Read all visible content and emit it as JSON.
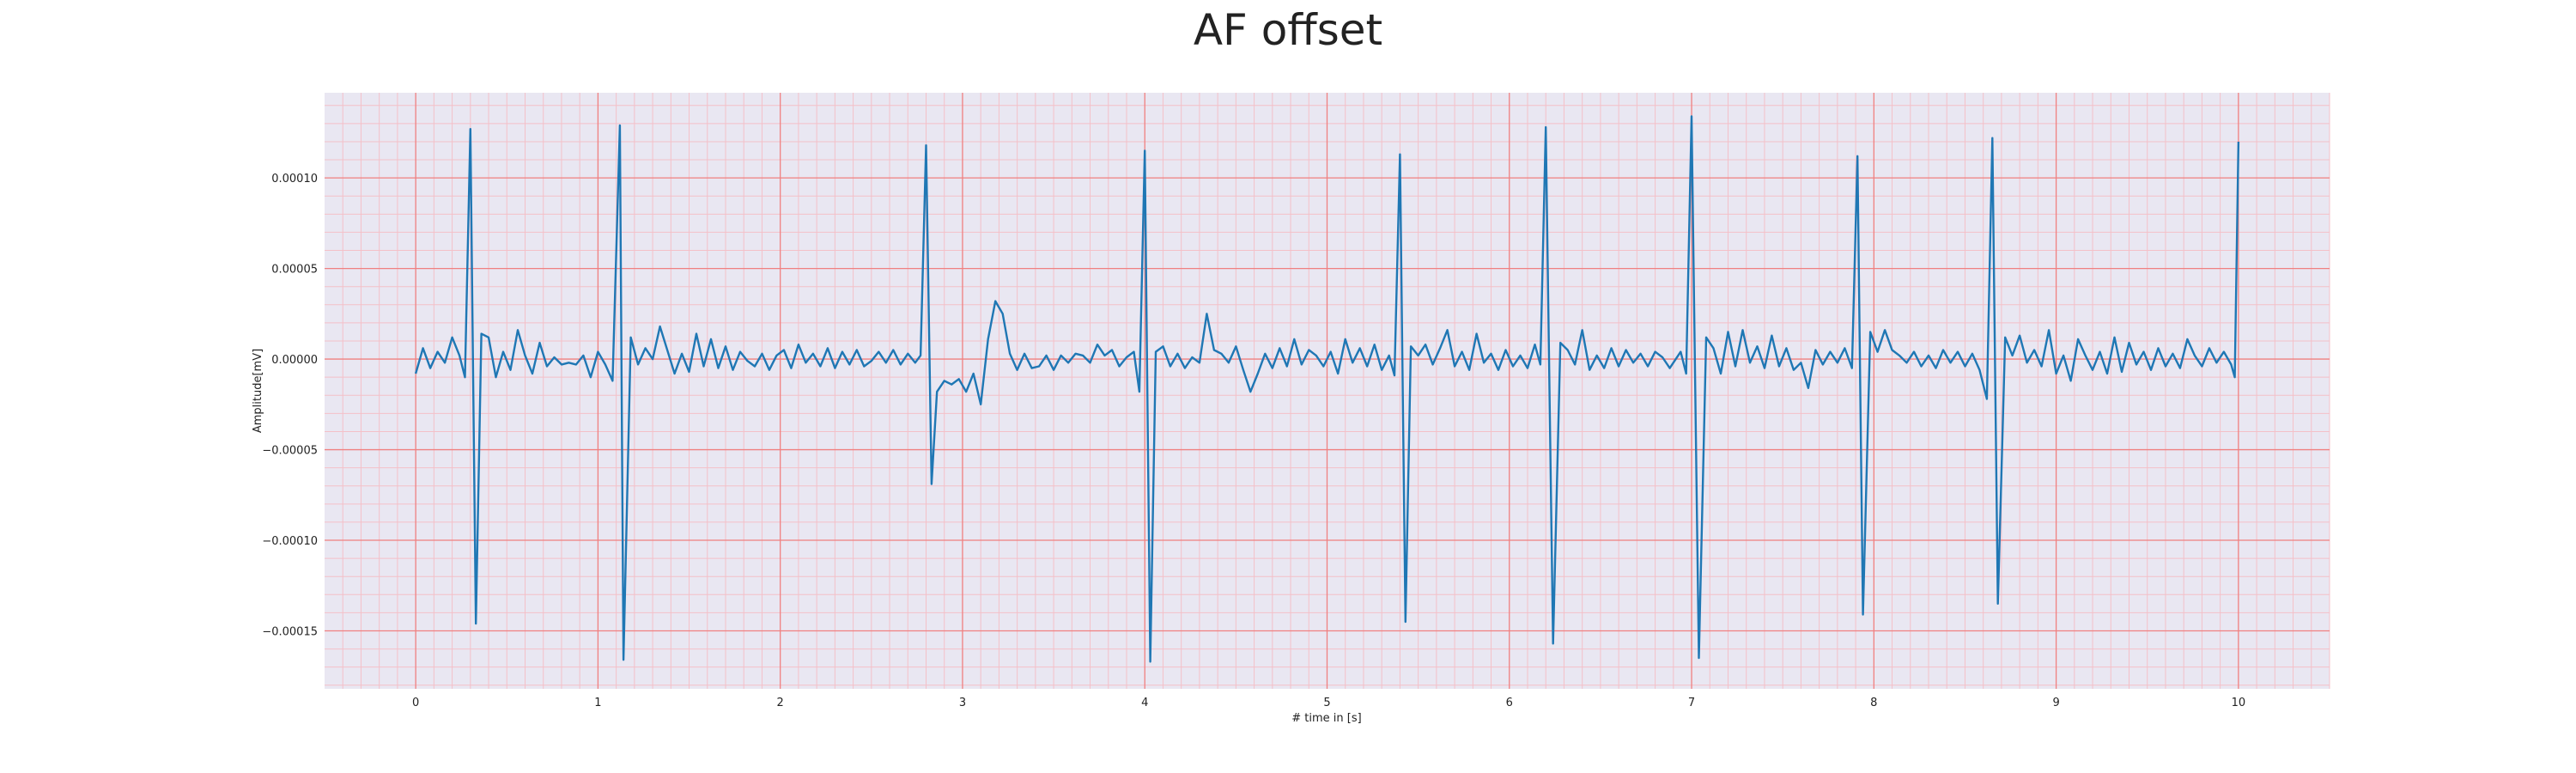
{
  "chart_data": {
    "type": "line",
    "title": "AF offset",
    "xlabel": "# time in [s]",
    "ylabel": "Amplitude[mV]",
    "xlim": [
      -0.5,
      10.5
    ],
    "ylim": [
      -0.000182,
      0.000147
    ],
    "x_ticks": [
      0,
      1,
      2,
      3,
      4,
      5,
      6,
      7,
      8,
      9,
      10
    ],
    "x_tick_labels": [
      "0",
      "1",
      "2",
      "3",
      "4",
      "5",
      "6",
      "7",
      "8",
      "9",
      "10"
    ],
    "y_ticks": [
      0.0001,
      5e-05,
      0.0,
      -5e-05,
      -0.0001,
      -0.00015
    ],
    "y_tick_labels": [
      "0.00010",
      "0.00005",
      "0.00000",
      "−0.00005",
      "−0.00010",
      "−0.00015"
    ],
    "grid": {
      "major": true,
      "minor": true
    },
    "colors": {
      "background": "#e9e7f2",
      "major_grid": "#f08080",
      "minor_grid": "#f4c0c8",
      "line": "#1f77b4"
    },
    "series": [
      {
        "values": {
          "x": [
            0.0,
            0.04,
            0.08,
            0.12,
            0.16,
            0.2,
            0.24,
            0.27,
            0.3,
            0.33,
            0.36,
            0.4,
            0.44,
            0.48,
            0.52,
            0.56,
            0.6,
            0.64,
            0.68,
            0.72,
            0.76,
            0.8,
            0.84,
            0.88,
            0.92,
            0.96,
            1.0,
            1.04,
            1.08,
            1.12,
            1.14,
            1.18,
            1.22,
            1.26,
            1.3,
            1.34,
            1.38,
            1.42,
            1.46,
            1.5,
            1.54,
            1.58,
            1.62,
            1.66,
            1.7,
            1.74,
            1.78,
            1.82,
            1.86,
            1.9,
            1.94,
            1.98,
            2.02,
            2.06,
            2.1,
            2.14,
            2.18,
            2.22,
            2.26,
            2.3,
            2.34,
            2.38,
            2.42,
            2.46,
            2.5,
            2.54,
            2.58,
            2.62,
            2.66,
            2.7,
            2.74,
            2.77,
            2.8,
            2.83,
            2.86,
            2.9,
            2.94,
            2.98,
            3.02,
            3.06,
            3.1,
            3.14,
            3.18,
            3.22,
            3.26,
            3.3,
            3.34,
            3.38,
            3.42,
            3.46,
            3.5,
            3.54,
            3.58,
            3.62,
            3.66,
            3.7,
            3.74,
            3.78,
            3.82,
            3.86,
            3.9,
            3.94,
            3.97,
            4.0,
            4.03,
            4.06,
            4.1,
            4.14,
            4.18,
            4.22,
            4.26,
            4.3,
            4.34,
            4.38,
            4.42,
            4.46,
            4.5,
            4.54,
            4.58,
            4.62,
            4.66,
            4.7,
            4.74,
            4.78,
            4.82,
            4.86,
            4.9,
            4.94,
            4.98,
            5.02,
            5.06,
            5.1,
            5.14,
            5.18,
            5.22,
            5.26,
            5.3,
            5.34,
            5.37,
            5.4,
            5.43,
            5.46,
            5.5,
            5.54,
            5.58,
            5.62,
            5.66,
            5.7,
            5.74,
            5.78,
            5.82,
            5.86,
            5.9,
            5.94,
            5.98,
            6.02,
            6.06,
            6.1,
            6.14,
            6.17,
            6.2,
            6.24,
            6.28,
            6.32,
            6.36,
            6.4,
            6.44,
            6.48,
            6.52,
            6.56,
            6.6,
            6.64,
            6.68,
            6.72,
            6.76,
            6.8,
            6.84,
            6.88,
            6.94,
            6.97,
            7.0,
            7.04,
            7.08,
            7.12,
            7.16,
            7.2,
            7.24,
            7.28,
            7.32,
            7.36,
            7.4,
            7.44,
            7.48,
            7.52,
            7.56,
            7.6,
            7.64,
            7.68,
            7.72,
            7.76,
            7.8,
            7.84,
            7.88,
            7.91,
            7.94,
            7.98,
            8.02,
            8.06,
            8.1,
            8.14,
            8.18,
            8.22,
            8.26,
            8.3,
            8.34,
            8.38,
            8.42,
            8.46,
            8.5,
            8.54,
            8.58,
            8.62,
            8.65,
            8.68,
            8.72,
            8.76,
            8.8,
            8.84,
            8.88,
            8.92,
            8.96,
            9.0,
            9.04,
            9.08,
            9.12,
            9.16,
            9.2,
            9.24,
            9.28,
            9.32,
            9.36,
            9.4,
            9.44,
            9.48,
            9.52,
            9.56,
            9.6,
            9.64,
            9.68,
            9.72,
            9.76,
            9.8,
            9.84,
            9.88,
            9.92,
            9.96,
            9.98,
            10.0
          ],
          "y": [
            -8e-06,
            6e-06,
            -5e-06,
            4e-06,
            -2e-06,
            1.2e-05,
            2e-06,
            -1e-05,
            0.000127,
            -0.000146,
            1.4e-05,
            1.2e-05,
            -1e-05,
            4e-06,
            -6e-06,
            1.6e-05,
            2e-06,
            -8e-06,
            9e-06,
            -4e-06,
            1e-06,
            -3e-06,
            -2e-06,
            -3e-06,
            2e-06,
            -1e-05,
            4e-06,
            -3e-06,
            -1.2e-05,
            0.000129,
            -0.000166,
            1.2e-05,
            -3e-06,
            6e-06,
            0.0,
            1.8e-05,
            5e-06,
            -8e-06,
            3e-06,
            -7e-06,
            1.4e-05,
            -4e-06,
            1.1e-05,
            -5e-06,
            7e-06,
            -6e-06,
            4e-06,
            -1e-06,
            -4e-06,
            3e-06,
            -6e-06,
            2e-06,
            5e-06,
            -5e-06,
            8e-06,
            -2e-06,
            3e-06,
            -4e-06,
            6e-06,
            -5e-06,
            4e-06,
            -3e-06,
            5e-06,
            -4e-06,
            -1e-06,
            4e-06,
            -2e-06,
            5e-06,
            -3e-06,
            3e-06,
            -2e-06,
            2e-06,
            0.000118,
            -6.9e-05,
            -1.8e-05,
            -1.2e-05,
            -1.4e-05,
            -1.1e-05,
            -1.8e-05,
            -8e-06,
            -2.5e-05,
            1.1e-05,
            3.2e-05,
            2.5e-05,
            3e-06,
            -6e-06,
            3e-06,
            -5e-06,
            -4e-06,
            2e-06,
            -6e-06,
            2e-06,
            -2e-06,
            3e-06,
            2e-06,
            -2e-06,
            8e-06,
            2e-06,
            5e-06,
            -4e-06,
            1e-06,
            4e-06,
            -1.8e-05,
            0.000115,
            -0.000167,
            4e-06,
            7e-06,
            -4e-06,
            3e-06,
            -5e-06,
            1e-06,
            -2e-06,
            2.5e-05,
            5e-06,
            3e-06,
            -2e-06,
            7e-06,
            -6e-06,
            -1.8e-05,
            -8e-06,
            3e-06,
            -5e-06,
            6e-06,
            -4e-06,
            1.1e-05,
            -3e-06,
            5e-06,
            2e-06,
            -4e-06,
            4e-06,
            -8e-06,
            1.1e-05,
            -2e-06,
            6e-06,
            -4e-06,
            8e-06,
            -6e-06,
            2e-06,
            -9e-06,
            0.000113,
            -0.000145,
            7e-06,
            2e-06,
            8e-06,
            -3e-06,
            6e-06,
            1.6e-05,
            -4e-06,
            4e-06,
            -6e-06,
            1.4e-05,
            -2e-06,
            3e-06,
            -6e-06,
            5e-06,
            -4e-06,
            2e-06,
            -5e-06,
            8e-06,
            -3e-06,
            0.000128,
            -0.000157,
            9e-06,
            5e-06,
            -3e-06,
            1.6e-05,
            -6e-06,
            2e-06,
            -5e-06,
            6e-06,
            -4e-06,
            5e-06,
            -2e-06,
            3e-06,
            -4e-06,
            4e-06,
            1e-06,
            -5e-06,
            4e-06,
            -8e-06,
            0.000134,
            -0.000165,
            1.2e-05,
            6e-06,
            -8e-06,
            1.5e-05,
            -4e-06,
            1.6e-05,
            -2e-06,
            7e-06,
            -5e-06,
            1.3e-05,
            -4e-06,
            6e-06,
            -6e-06,
            -2e-06,
            -1.6e-05,
            5e-06,
            -3e-06,
            4e-06,
            -2e-06,
            6e-06,
            -5e-06,
            0.000112,
            -0.000141,
            1.5e-05,
            4e-06,
            1.6e-05,
            5e-06,
            2e-06,
            -2e-06,
            4e-06,
            -4e-06,
            2e-06,
            -5e-06,
            5e-06,
            -2e-06,
            4e-06,
            -4e-06,
            3e-06,
            -6e-06,
            -2.2e-05,
            0.000122,
            -0.000135,
            1.2e-05,
            2e-06,
            1.3e-05,
            -2e-06,
            5e-06,
            -4e-06,
            1.6e-05,
            -8e-06,
            2e-06,
            -1.2e-05,
            1.1e-05,
            2e-06,
            -6e-06,
            4e-06,
            -8e-06,
            1.2e-05,
            -7e-06,
            9e-06,
            -3e-06,
            4e-06,
            -6e-06,
            6e-06,
            -4e-06,
            3e-06,
            -5e-06,
            1.1e-05,
            2e-06,
            -4e-06,
            6e-06,
            -2e-06,
            4e-06,
            -3e-06,
            -1e-05,
            0.00012
          ]
        }
      }
    ]
  }
}
